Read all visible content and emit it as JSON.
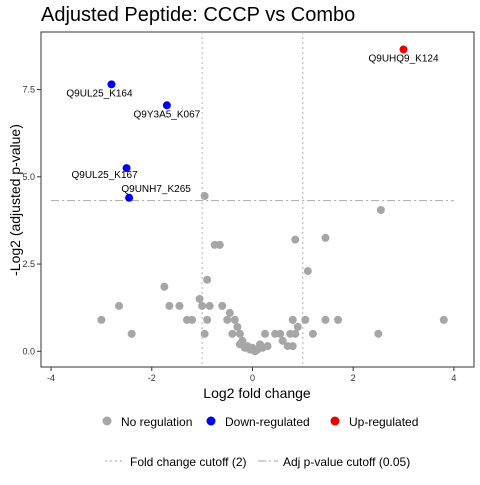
{
  "chart_data": {
    "type": "scatter",
    "title": "Adjusted Peptide: CCCP vs Combo",
    "xlabel": "Log2 fold change",
    "ylabel": "-Log2 (adjusted p-value)",
    "xlim": [
      -4.2,
      4.4
    ],
    "ylim": [
      -0.45,
      9.15
    ],
    "x_ticks": [
      -4,
      -2,
      0,
      2,
      4
    ],
    "x_tick_labels": [
      "-4",
      "-2",
      "0",
      "2",
      "4"
    ],
    "y_ticks": [
      0,
      2.5,
      5,
      7.5
    ],
    "y_tick_labels": [
      "0.0",
      "2.5",
      "5.0",
      "7.5"
    ],
    "grid": false,
    "legend_position": "bottom",
    "colors": {
      "none": "#a6a6a6",
      "down": "#0000ee",
      "up": "#ee0000",
      "cutoff_line": "#b3b3b3"
    },
    "series": [
      {
        "name": "No regulation",
        "key": "none",
        "points": [
          [
            -3.0,
            0.9
          ],
          [
            -2.65,
            1.3
          ],
          [
            -2.4,
            0.5
          ],
          [
            -1.75,
            1.85
          ],
          [
            -1.65,
            1.3
          ],
          [
            -1.45,
            1.3
          ],
          [
            -1.3,
            0.9
          ],
          [
            -1.2,
            0.9
          ],
          [
            -1.05,
            1.5
          ],
          [
            -1.0,
            1.3
          ],
          [
            -0.95,
            0.5
          ],
          [
            -0.9,
            0.9
          ],
          [
            -0.9,
            2.05
          ],
          [
            -0.85,
            1.3
          ],
          [
            -0.75,
            3.05
          ],
          [
            -0.65,
            3.05
          ],
          [
            -0.6,
            1.3
          ],
          [
            -0.5,
            0.9
          ],
          [
            -0.45,
            1.1
          ],
          [
            -0.4,
            0.5
          ],
          [
            -0.35,
            0.9
          ],
          [
            -0.3,
            0.7
          ],
          [
            -0.25,
            0.5
          ],
          [
            -0.25,
            0.2
          ],
          [
            -0.2,
            0.3
          ],
          [
            -0.15,
            0.1
          ],
          [
            -0.1,
            0.15
          ],
          [
            -0.05,
            0.05
          ],
          [
            0.0,
            0.1
          ],
          [
            0.05,
            0.0
          ],
          [
            0.1,
            0.05
          ],
          [
            0.15,
            0.2
          ],
          [
            0.2,
            0.1
          ],
          [
            0.25,
            0.5
          ],
          [
            0.3,
            0.15
          ],
          [
            0.45,
            0.5
          ],
          [
            0.55,
            0.5
          ],
          [
            0.6,
            0.3
          ],
          [
            0.7,
            0.15
          ],
          [
            0.75,
            0.5
          ],
          [
            0.8,
            0.9
          ],
          [
            0.85,
            0.5
          ],
          [
            0.8,
            0.15
          ],
          [
            0.85,
            3.2
          ],
          [
            0.9,
            0.7
          ],
          [
            1.05,
            0.9
          ],
          [
            1.1,
            2.3
          ],
          [
            1.2,
            0.5
          ],
          [
            1.45,
            3.25
          ],
          [
            1.45,
            0.9
          ],
          [
            1.7,
            0.9
          ],
          [
            2.5,
            0.5
          ],
          [
            2.55,
            4.05
          ],
          [
            3.8,
            0.9
          ],
          [
            -0.95,
            4.45
          ]
        ]
      },
      {
        "name": "Down-regulated",
        "key": "down",
        "points": [
          [
            -2.8,
            7.65
          ],
          [
            -1.7,
            7.05
          ],
          [
            -2.5,
            5.25
          ],
          [
            -2.45,
            4.4
          ]
        ]
      },
      {
        "name": "Up-regulated",
        "key": "up",
        "points": [
          [
            3.0,
            8.65
          ]
        ]
      }
    ],
    "annotations": [
      {
        "text": "Q9UHQ9_K124",
        "x": 3.0,
        "y": 8.65
      },
      {
        "text": "Q9UL25_K164",
        "x": -2.8,
        "y": 7.65
      },
      {
        "text": "Q9Y3A5_K067",
        "x": -1.7,
        "y": 7.05
      },
      {
        "text": "Q9UL25_K167",
        "x": -2.5,
        "y": 5.25
      },
      {
        "text": "Q9UNH7_K265",
        "x": -2.45,
        "y": 4.4
      }
    ],
    "cutoffs": [
      {
        "name": "Fold change cutoff (2)",
        "axis": "x",
        "values": [
          -1,
          1
        ],
        "style": "dotted"
      },
      {
        "name": "Adj p-value cutoff (0.05)",
        "axis": "y",
        "values": [
          4.32
        ],
        "style": "dashdot"
      }
    ]
  }
}
